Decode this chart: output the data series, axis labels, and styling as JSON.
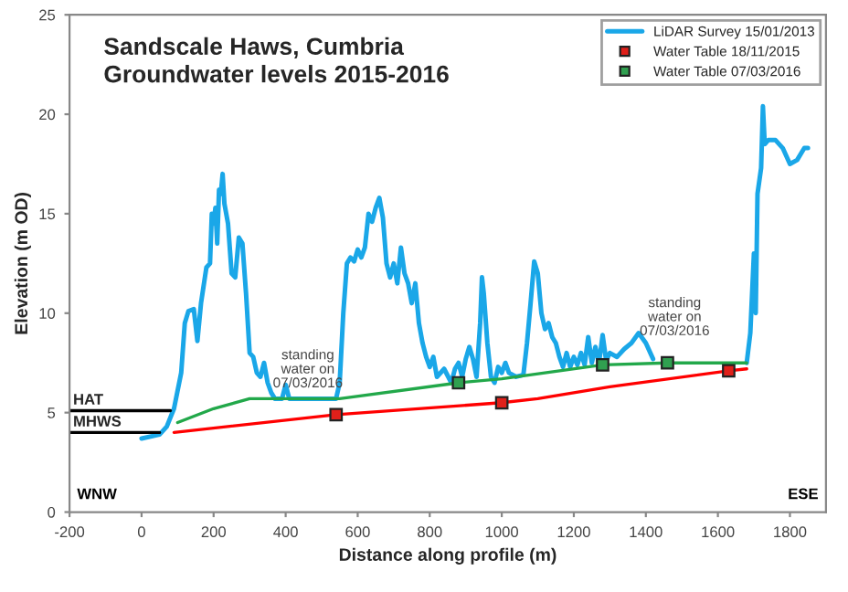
{
  "chart_data": {
    "type": "line",
    "title": "Sandscale Haws, Cumbria\nGroundwater levels 2015-2016",
    "xlabel": "Distance along profile (m)",
    "ylabel": "Elevation (m OD)",
    "xlim": [
      -200,
      1900
    ],
    "xticks": [
      -200,
      0,
      200,
      400,
      600,
      800,
      1000,
      1200,
      1400,
      1600,
      1800
    ],
    "ylim": [
      0,
      25
    ],
    "yticks": [
      0,
      5,
      10,
      15,
      20,
      25
    ],
    "grid": false,
    "legend": "top right",
    "series": [
      {
        "name": "LiDAR Survey 15/01/2013",
        "color": "#1aa7e8",
        "marker": "none",
        "x": [
          0,
          50,
          70,
          90,
          110,
          120,
          130,
          145,
          155,
          165,
          180,
          190,
          195,
          200,
          205,
          210,
          215,
          220,
          225,
          230,
          240,
          250,
          260,
          270,
          280,
          290,
          300,
          310,
          320,
          330,
          340,
          350,
          360,
          370,
          390,
          400,
          410,
          450,
          540,
          550,
          560,
          570,
          580,
          590,
          600,
          610,
          620,
          630,
          640,
          650,
          660,
          670,
          680,
          690,
          700,
          710,
          720,
          730,
          740,
          750,
          760,
          770,
          780,
          790,
          800,
          810,
          820,
          840,
          860,
          870,
          880,
          890,
          900,
          910,
          920,
          930,
          940,
          945,
          950,
          960,
          970,
          980,
          990,
          1000,
          1010,
          1020,
          1040,
          1060,
          1070,
          1080,
          1090,
          1100,
          1110,
          1120,
          1130,
          1140,
          1150,
          1160,
          1170,
          1180,
          1190,
          1200,
          1210,
          1220,
          1230,
          1240,
          1250,
          1260,
          1270,
          1280,
          1290,
          1300,
          1320,
          1340,
          1360,
          1380,
          1400,
          1420,
          1550,
          1680,
          1690,
          1700,
          1705,
          1710,
          1720,
          1725,
          1730,
          1740,
          1760,
          1780,
          1800,
          1820,
          1840,
          1850
        ],
        "values": [
          3.7,
          3.9,
          4.3,
          5.2,
          7,
          9.5,
          10.1,
          10.2,
          8.6,
          10.5,
          12.3,
          12.5,
          15,
          14.5,
          15.3,
          13.5,
          16.2,
          16,
          17,
          15.5,
          14.5,
          12,
          11.8,
          13.8,
          13.5,
          11,
          8,
          7.8,
          7,
          6.8,
          7.5,
          6.5,
          6,
          5.7,
          5.7,
          6.4,
          5.7,
          5.7,
          5.7,
          6.5,
          10,
          12.5,
          12.8,
          12.6,
          13.2,
          12.8,
          13.3,
          15,
          14.6,
          15.3,
          15.8,
          14.8,
          12.5,
          11.8,
          12.5,
          11.5,
          13.3,
          12,
          11.5,
          10.5,
          11.5,
          9.5,
          8.5,
          7.8,
          7.3,
          7.8,
          6.8,
          7.2,
          6.5,
          7.2,
          7.5,
          6.8,
          7.7,
          8.3,
          7.7,
          6.8,
          9.5,
          11.8,
          11,
          8.5,
          6.8,
          6.5,
          7.3,
          7,
          7.5,
          7,
          6.8,
          6.9,
          8.5,
          10.5,
          12.6,
          12,
          10,
          9.2,
          9.5,
          8.8,
          8.5,
          7.8,
          7.3,
          8,
          7.3,
          7.8,
          7.4,
          8,
          7.4,
          8.8,
          7.5,
          8.3,
          7.5,
          8.9,
          7.6,
          8,
          7.8,
          8.2,
          8.5,
          9,
          8.5,
          7.7,
          null,
          7.5,
          9,
          13,
          10,
          16,
          17.3,
          20.4,
          18.5,
          18.7,
          18.7,
          18.3,
          17.5,
          17.7,
          18.3,
          18.3
        ]
      },
      {
        "color": "#ff0000",
        "marker": "none",
        "x": [
          90,
          540,
          1000,
          1100,
          1300,
          1630,
          1680
        ],
        "values": [
          4.0,
          4.9,
          5.5,
          5.7,
          6.3,
          7.1,
          7.2
        ]
      },
      {
        "color": "#22a84a",
        "marker": "none",
        "x": [
          100,
          200,
          300,
          550,
          880,
          1000,
          1280,
          1460,
          1680
        ],
        "values": [
          4.5,
          5.2,
          5.7,
          5.7,
          6.5,
          6.7,
          7.4,
          7.5,
          7.5
        ]
      },
      {
        "name": "Water Table 18/11/2015",
        "type": "scatter",
        "color": "#e0201a",
        "marker": "square",
        "x": [
          540,
          1000,
          1630
        ],
        "values": [
          4.9,
          5.5,
          7.1
        ]
      },
      {
        "name": "Water Table 07/03/2016",
        "type": "scatter",
        "color": "#30a050",
        "marker": "square",
        "x": [
          880,
          1280,
          1460
        ],
        "values": [
          6.5,
          7.4,
          7.5
        ]
      },
      {
        "name": "HAT",
        "color": "#000000",
        "marker": "none",
        "x": [
          -200,
          80
        ],
        "values": [
          5.1,
          5.1
        ]
      },
      {
        "name": "MHWS",
        "color": "#000000",
        "marker": "none",
        "x": [
          -200,
          50
        ],
        "values": [
          4.0,
          4.0
        ]
      }
    ],
    "annotations": [
      "standing\nwater on\n07/03/2016",
      "standing\nwater on\n07/03/2016",
      "WNW",
      "ESE"
    ]
  }
}
